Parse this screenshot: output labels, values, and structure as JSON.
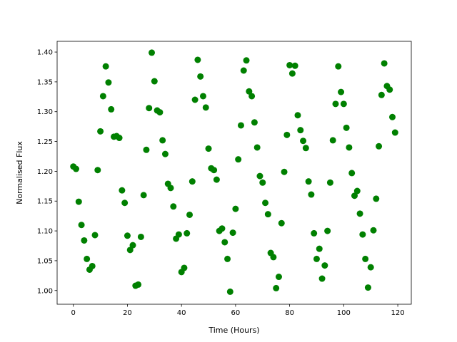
{
  "chart_data": {
    "type": "scatter",
    "xlabel": "Time (Hours)",
    "ylabel": "Normalised Flux",
    "color": "#008000",
    "x": [
      0,
      1,
      2,
      3,
      4,
      5,
      6,
      7,
      8,
      9,
      10,
      11,
      12,
      13,
      14,
      15,
      16,
      17,
      18,
      19,
      20,
      21,
      22,
      23,
      24,
      25,
      26,
      27,
      28,
      29,
      30,
      31,
      32,
      33,
      34,
      35,
      36,
      37,
      38,
      39,
      40,
      41,
      42,
      43,
      44,
      45,
      46,
      47,
      48,
      49,
      50,
      51,
      52,
      53,
      54,
      55,
      56,
      57,
      58,
      59,
      60,
      61,
      62,
      63,
      64,
      65,
      66,
      67,
      68,
      69,
      70,
      71,
      72,
      73,
      74,
      75,
      76,
      77,
      78,
      79,
      80,
      81,
      82,
      83,
      84,
      85,
      86,
      87,
      88,
      89,
      90,
      91,
      92,
      93,
      94,
      95,
      96,
      97,
      98,
      99,
      100,
      101,
      102,
      103,
      104,
      105,
      106,
      107,
      108,
      109,
      110,
      111,
      112,
      113,
      114,
      115,
      116,
      117,
      118,
      119
    ],
    "values": [
      1.208,
      1.204,
      1.149,
      1.11,
      1.084,
      1.053,
      1.035,
      1.041,
      1.093,
      1.202,
      1.267,
      1.326,
      1.376,
      1.349,
      1.304,
      1.258,
      1.259,
      1.256,
      1.168,
      1.147,
      1.092,
      1.068,
      1.076,
      1.008,
      1.01,
      1.09,
      1.16,
      1.236,
      1.306,
      1.399,
      1.351,
      1.302,
      1.299,
      1.252,
      1.229,
      1.179,
      1.172,
      1.141,
      1.087,
      1.094,
      1.031,
      1.038,
      1.096,
      1.127,
      1.183,
      1.32,
      1.387,
      1.359,
      1.326,
      1.307,
      1.238,
      1.205,
      1.202,
      1.186,
      1.1,
      1.104,
      1.081,
      1.053,
      0.998,
      1.097,
      1.137,
      1.22,
      1.277,
      1.369,
      1.386,
      1.334,
      1.326,
      1.282,
      1.24,
      1.192,
      1.181,
      1.147,
      1.128,
      1.063,
      1.056,
      1.004,
      1.023,
      1.113,
      1.199,
      1.261,
      1.378,
      1.364,
      1.377,
      1.294,
      1.269,
      1.251,
      1.239,
      1.183,
      1.161,
      1.096,
      1.053,
      1.07,
      1.02,
      1.042,
      1.1,
      1.181,
      1.252,
      1.313,
      1.376,
      1.333,
      1.313,
      1.273,
      1.24,
      1.197,
      1.159,
      1.167,
      1.129,
      1.094,
      1.053,
      1.005,
      1.039,
      1.101,
      1.154,
      1.242,
      1.328,
      1.381,
      1.343,
      1.337,
      1.291,
      1.265
    ],
    "xlim": [
      -6,
      125
    ],
    "xticks": [
      0,
      20,
      40,
      60,
      80,
      100,
      120
    ],
    "ylim": [
      0.977,
      1.418
    ],
    "yticks": [
      {
        "value": 1.0,
        "label": "1.00"
      },
      {
        "value": 1.05,
        "label": "1.05"
      },
      {
        "value": 1.1,
        "label": "1.10"
      },
      {
        "value": 1.15,
        "label": "1.15"
      },
      {
        "value": 1.2,
        "label": "1.20"
      },
      {
        "value": 1.25,
        "label": "1.25"
      },
      {
        "value": 1.3,
        "label": "1.30"
      },
      {
        "value": 1.35,
        "label": "1.35"
      },
      {
        "value": 1.4,
        "label": "1.40"
      }
    ]
  }
}
